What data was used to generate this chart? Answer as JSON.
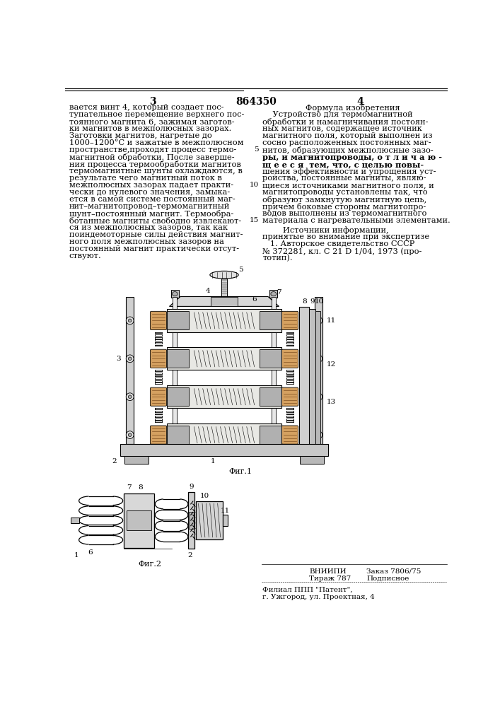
{
  "background_color": "#ffffff",
  "page_num_left": "3",
  "page_num_center": "864350",
  "page_num_right": "4",
  "left_col_text": [
    "вается винт 4, который создает пос-",
    "тупательное перемещение верхнего пос-",
    "тоянного магнита 6, зажимая заготов-",
    "ки магнитов в межполюсных зазорах.",
    "Заготовки магнитов, нагретые до",
    "1000–1200°С и зажатые в межполюсном",
    "пространстве,проходят процесс термо-",
    "магнитной обработки. После заверше-",
    "ния процесса термообработки магнитов",
    "термомагнитные шунты охлаждаются, в",
    "результате чего магнитный поток в",
    "межполюсных зазорах падает практи-",
    "чески до нулевого значения, замыка-",
    "ется в самой системе постоянный маг-",
    "нит–магнитопровод–термомагнитный",
    "шунт–постоянный магнит. Термообра-",
    "ботанные магниты свободно извлекают-",
    "ся из межполюсных зазоров, так как",
    "поиндемоторные силы действия магнит-",
    "ного поля межполюсных зазоров на",
    "постоянный магнит практически отсут-",
    "ствуют."
  ],
  "right_col_title": "Формула изобретения",
  "right_col_subtitle": "    Устройство для термомагнитной",
  "right_col_text": [
    "обработки и намагничивания постоян-",
    "ных магнитов, содержащее источник",
    "магнитного поля, который выполнен из",
    "сосно расположенных постоянных маг-",
    "нитов, образующих межполюсные зазо-",
    "ры, и магнитопроводы, о т л и ч а ю -",
    "щ е е с я  тем, что, с целью повы-",
    "шения эффективности и упрощения уст-",
    "ройства, постоянные магниты, являю-",
    "щиеся источниками магнитного поля, и",
    "магнитопроводы установлены так, что",
    "образуют замкнутую магнитную цепь,",
    "причем боковые стороны магнитопро-",
    "водов выполнены из термомагнитного",
    "материала с нагревательными элементами."
  ],
  "right_col_source_title": "        Источники информации,",
  "right_col_source_text": [
    "принятые во внимание при экспертизе",
    "   1. Авторское свидетельство СССР",
    "№ 372281, кл. С 21 D 1/04, 1973 (про-",
    "тотип)."
  ],
  "fig1_label": "Фиг.1",
  "fig2_label": "Фиг.2"
}
